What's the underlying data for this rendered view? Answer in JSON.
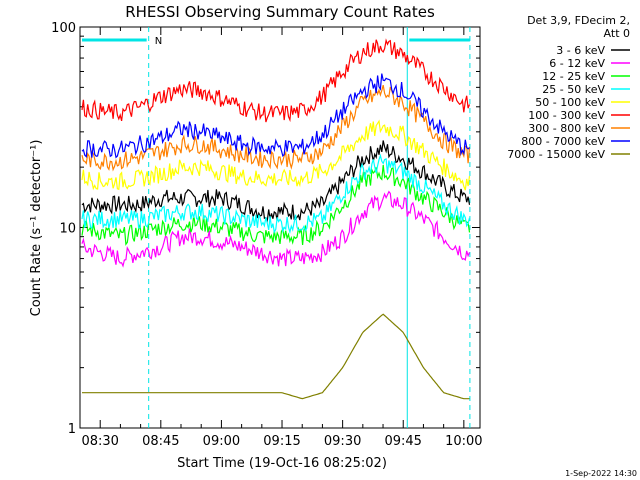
{
  "chart_data": {
    "type": "line",
    "title": "RHESSI Observing Summary Count Rates",
    "xlabel": "Start Time (19-Oct-16 08:25:02)",
    "ylabel": "Count Rate (s⁻¹ detector⁻¹)",
    "yscale": "log",
    "ylim": [
      1,
      100
    ],
    "xlim_minutes": [
      0,
      99
    ],
    "x_tick_labels": [
      "08:30",
      "08:45",
      "09:00",
      "09:15",
      "09:30",
      "09:45",
      "10:00"
    ],
    "y_tick_labels": [
      "1",
      "10",
      "100"
    ],
    "legend_header": [
      "Det 3,9, FDecim 2,",
      "Att 0"
    ],
    "legend_position": "top-right",
    "footer": "1-Sep-2022 14:30",
    "flag_label": "N",
    "x": [
      0,
      5,
      10,
      15,
      20,
      25,
      30,
      35,
      40,
      45,
      50,
      55,
      60,
      65,
      70,
      75,
      80,
      85,
      90,
      95
    ],
    "series": [
      {
        "name": "3 - 6 keV",
        "color": "#000000",
        "values": [
          13,
          13,
          13,
          13,
          14,
          14,
          14,
          14,
          13,
          12,
          12,
          12,
          13,
          17,
          22,
          25,
          22,
          19,
          16,
          14
        ]
      },
      {
        "name": "6 - 12 keV",
        "color": "#ff00ff",
        "values": [
          8,
          7.5,
          7,
          7.5,
          8,
          9,
          9,
          8.5,
          8,
          7.5,
          7,
          7,
          7.5,
          9,
          12,
          14,
          13,
          11,
          9,
          7.5
        ]
      },
      {
        "name": "12 - 25 keV",
        "color": "#00ff00",
        "values": [
          10,
          9.5,
          9,
          9.5,
          10,
          10.5,
          10.5,
          10,
          9.5,
          9,
          9,
          9,
          10,
          13,
          17,
          19,
          17,
          14,
          12,
          10
        ]
      },
      {
        "name": "25 - 50 keV",
        "color": "#00ffff",
        "values": [
          11,
          11,
          11,
          11,
          11.5,
          12,
          12,
          11.5,
          11,
          10.5,
          10.5,
          10.5,
          11,
          15,
          19,
          21,
          19,
          16,
          13,
          11
        ]
      },
      {
        "name": "50 - 100 keV",
        "color": "#ffff00",
        "values": [
          18,
          17,
          17,
          17.5,
          18.5,
          20,
          20,
          19,
          18,
          17.5,
          17.5,
          17.5,
          19,
          23,
          29,
          32,
          29,
          24,
          20,
          17
        ]
      },
      {
        "name": "100 - 300 keV",
        "color": "#ff0000",
        "values": [
          40,
          38,
          37,
          40,
          45,
          49,
          48,
          44,
          40,
          37,
          37,
          38,
          45,
          60,
          75,
          82,
          73,
          60,
          50,
          41
        ]
      },
      {
        "name": "300 - 800 keV",
        "color": "#ff8000",
        "values": [
          22,
          21.5,
          21.5,
          22.5,
          24,
          26,
          26,
          24.5,
          23,
          22,
          22,
          22,
          24,
          32,
          42,
          48,
          42,
          34,
          27,
          23
        ]
      },
      {
        "name": "800 - 7000 keV",
        "color": "#0000ff",
        "values": [
          25,
          24.5,
          24.5,
          26,
          28,
          31,
          30,
          28,
          26,
          25,
          25,
          25,
          29,
          38,
          48,
          54,
          48,
          38,
          30,
          25
        ]
      },
      {
        "name": "7000 - 15000 keV",
        "color": "#808000",
        "values": [
          1.5,
          1.5,
          1.5,
          1.5,
          1.5,
          1.5,
          1.5,
          1.5,
          1.5,
          1.5,
          1.5,
          1.4,
          1.5,
          2.0,
          3.0,
          3.7,
          3.0,
          2.0,
          1.5,
          1.4
        ]
      }
    ]
  }
}
